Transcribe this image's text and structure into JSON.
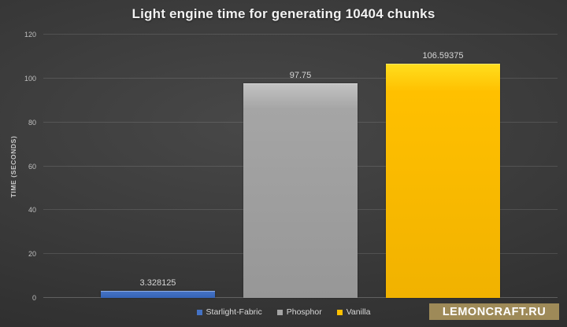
{
  "title": "Light engine time for generating 10404 chunks",
  "watermark_text": "LEMONCRAFT.RU",
  "colors": {
    "background_center": "#484848",
    "background_edge": "#272727",
    "gridline": "#4a4a4a",
    "title_text": "#f2f2f2",
    "tick_text": "#bfbfbf",
    "value_label_text": "#d6d6d6",
    "legend_text": "#d9d9d9",
    "watermark_background": "#9e8a58",
    "watermark_text": "#ffffff"
  },
  "chart_data": {
    "type": "bar",
    "title": "Light engine time for generating 10404 chunks",
    "categories": [
      "Starlight-Fabric",
      "Phosphor",
      "Vanilla"
    ],
    "values": [
      3.328125,
      97.75,
      106.59375
    ],
    "value_labels": [
      "3.328125",
      "97.75",
      "106.59375"
    ],
    "series_colors": [
      "#4472C4",
      "#A5A5A5",
      "#FFC000"
    ],
    "xlabel": "",
    "ylabel": "TIME (SECONDS)",
    "ylim": [
      0,
      120
    ],
    "yticks": [
      0,
      20,
      40,
      60,
      80,
      100,
      120
    ],
    "grid": true,
    "legend_position": "bottom"
  }
}
